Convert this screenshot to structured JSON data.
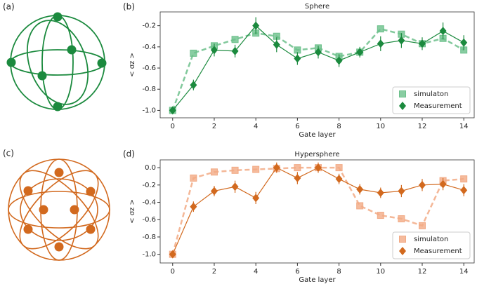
{
  "diagram_labels": [
    "(a)",
    "(c)"
  ],
  "chart_data": [
    {
      "type": "line",
      "panel": "(b)",
      "title": "Sphere",
      "x_label": "Gate layer",
      "y_label": "< σz >",
      "x": [
        0,
        1,
        2,
        3,
        4,
        5,
        6,
        7,
        8,
        9,
        10,
        11,
        12,
        13,
        14
      ],
      "xlim": [
        -0.6,
        14.5
      ],
      "xticks": [
        0,
        2,
        4,
        6,
        8,
        10,
        12,
        14
      ],
      "ylim": [
        -1.07,
        -0.07
      ],
      "yticks": [
        {
          "value": -1,
          "label": "-1.0"
        },
        -0.8,
        -0.6,
        -0.4,
        -0.2
      ],
      "legend": "lower right",
      "series": [
        {
          "name": "simulaton",
          "color": "#6cc08b",
          "marker": "square",
          "dashed": true,
          "values": [
            -1.0,
            -0.46,
            -0.39,
            -0.33,
            -0.27,
            -0.3,
            -0.43,
            -0.41,
            -0.49,
            -0.45,
            -0.23,
            -0.28,
            -0.37,
            -0.32,
            -0.43
          ]
        },
        {
          "name": "Measurement",
          "color": "#1b8a3e",
          "marker": "diamond",
          "dashed": false,
          "values": [
            -1.0,
            -0.76,
            -0.43,
            -0.44,
            -0.2,
            -0.38,
            -0.51,
            -0.45,
            -0.53,
            -0.45,
            -0.37,
            -0.34,
            -0.37,
            -0.25,
            -0.36
          ],
          "errors": [
            0.02,
            0.05,
            0.06,
            0.06,
            0.08,
            0.07,
            0.06,
            0.06,
            0.06,
            0.05,
            0.07,
            0.07,
            0.06,
            0.08,
            0.07
          ]
        }
      ]
    },
    {
      "type": "line",
      "panel": "(d)",
      "title": "Hypersphere",
      "x_label": "Gate layer",
      "y_label": "< σz >",
      "x": [
        0,
        1,
        2,
        3,
        4,
        5,
        6,
        7,
        8,
        9,
        10,
        11,
        12,
        13,
        14
      ],
      "xlim": [
        -0.6,
        14.5
      ],
      "xticks": [
        0,
        2,
        4,
        6,
        8,
        10,
        12,
        14
      ],
      "ylim": [
        -1.1,
        0.09
      ],
      "yticks": [
        {
          "value": -1,
          "label": "-1.0"
        },
        -0.8,
        -0.6,
        -0.4,
        -0.2,
        {
          "value": 0,
          "label": "0.0"
        }
      ],
      "legend": "lower right",
      "series": [
        {
          "name": "simulaton",
          "color": "#f2aa85",
          "marker": "square",
          "dashed": true,
          "values": [
            -1.0,
            -0.12,
            -0.05,
            -0.03,
            -0.02,
            -0.01,
            0.0,
            0.0,
            0.0,
            -0.44,
            -0.55,
            -0.59,
            -0.67,
            -0.15,
            -0.13
          ]
        },
        {
          "name": "Measurement",
          "color": "#d2691e",
          "marker": "diamond",
          "dashed": false,
          "values": [
            -1.0,
            -0.45,
            -0.27,
            -0.22,
            -0.35,
            0.0,
            -0.12,
            0.0,
            -0.13,
            -0.25,
            -0.29,
            -0.27,
            -0.2,
            -0.19,
            -0.26
          ],
          "errors": [
            0.02,
            0.06,
            0.06,
            0.07,
            0.07,
            0.06,
            0.07,
            0.06,
            0.06,
            0.06,
            0.06,
            0.07,
            0.07,
            0.07,
            0.07
          ]
        }
      ]
    }
  ]
}
